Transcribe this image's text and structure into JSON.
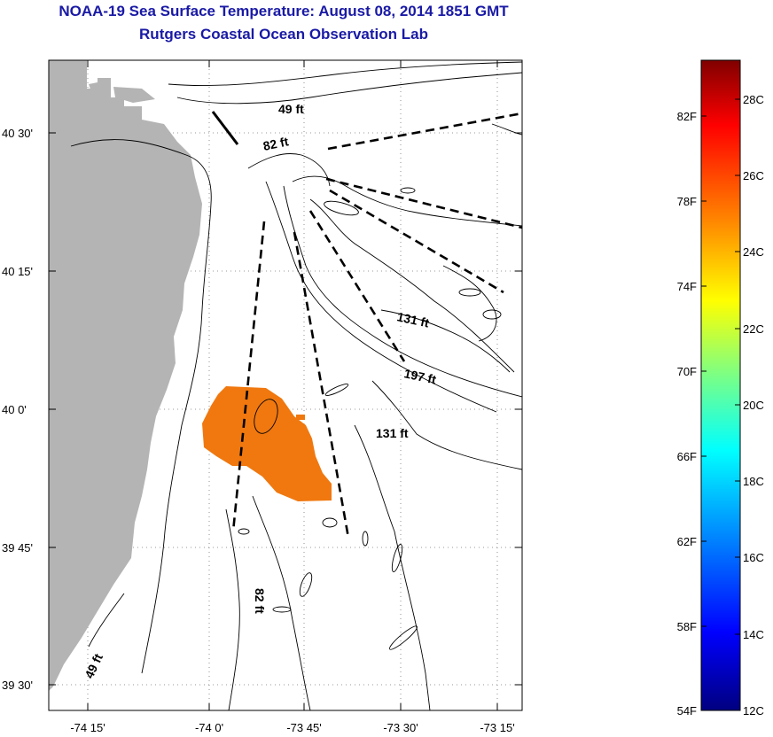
{
  "title_line1": "NOAA-19 Sea Surface Temperature:  August 08, 2014 1851 GMT",
  "title_line2": "Rutgers Coastal Ocean Observation Lab",
  "map": {
    "lat_labels": [
      "40 30'",
      "40 15'",
      "40 0'",
      "39 45'",
      "39 30'"
    ],
    "lon_labels": [
      "-74 15'",
      "-74 0'",
      "-73 45'",
      "-73 30'",
      "-73 15'"
    ],
    "depth_labels": {
      "d49_north": "49 ft",
      "d82_north": "82 ft",
      "d131_east": "131 ft",
      "d197": "197 ft",
      "d131_south": "131 ft",
      "d82_south": "82 ft",
      "d49_south": "49 ft"
    },
    "land_color": "#b4b4b4",
    "sst_patch_color": "#f0780f"
  },
  "colorbar": {
    "fahrenheit_labels": [
      "82F",
      "78F",
      "74F",
      "70F",
      "66F",
      "62F",
      "58F",
      "54F"
    ],
    "celsius_labels": [
      "28C",
      "26C",
      "24C",
      "22C",
      "20C",
      "18C",
      "16C",
      "14C",
      "12C"
    ],
    "min_c": 12,
    "max_c": 29,
    "colors": [
      "#000080",
      "#0000ff",
      "#0080ff",
      "#00ffff",
      "#80ff80",
      "#ffff00",
      "#ff8000",
      "#ff0000",
      "#800000"
    ]
  }
}
